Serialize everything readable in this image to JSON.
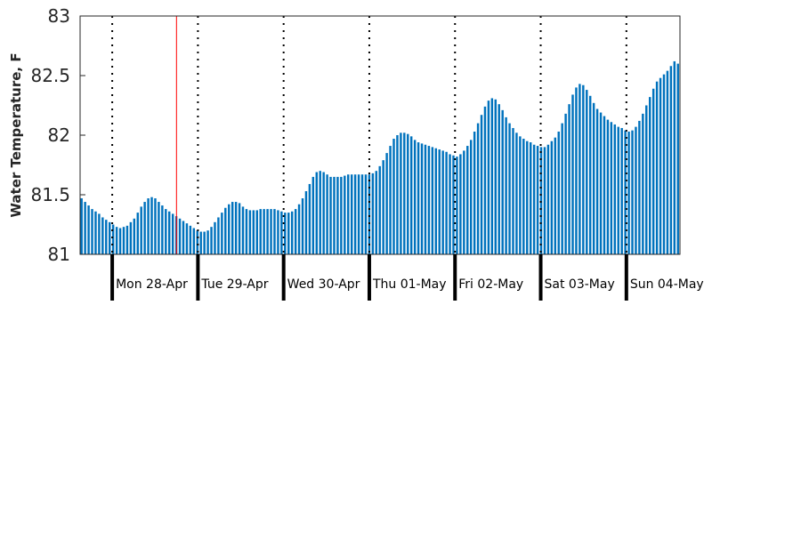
{
  "chart_data": {
    "type": "bar",
    "ylabel": "Water Temperature, F",
    "ylim": [
      81,
      83
    ],
    "yticks": [
      "81",
      "81.5",
      "82",
      "82.5",
      "83"
    ],
    "x_unit": "hours since start of data",
    "xlim": [
      0,
      168
    ],
    "day_boundaries": [
      9,
      33,
      57,
      81,
      105,
      129,
      153
    ],
    "day_labels": [
      "Mon 28-Apr",
      "Tue 29-Apr",
      "Wed 30-Apr",
      "Thu 01-May",
      "Fri 02-May",
      "Sat 03-May",
      "Sun 04-May"
    ],
    "current_time_marker": 27,
    "bar_color": "#0072bd",
    "marker_color": "#ff0000",
    "grid": "dotted vertical lines at day boundaries",
    "values": [
      81.47,
      81.44,
      81.41,
      81.38,
      81.36,
      81.34,
      81.31,
      81.29,
      81.27,
      81.25,
      81.23,
      81.22,
      81.23,
      81.24,
      81.27,
      81.3,
      81.35,
      81.4,
      81.44,
      81.47,
      81.48,
      81.47,
      81.44,
      81.41,
      81.38,
      81.36,
      81.34,
      81.32,
      81.3,
      81.28,
      81.26,
      81.24,
      81.22,
      81.2,
      81.19,
      81.19,
      81.2,
      81.23,
      81.27,
      81.31,
      81.35,
      81.39,
      81.42,
      81.44,
      81.44,
      81.43,
      81.4,
      81.38,
      81.37,
      81.37,
      81.37,
      81.38,
      81.38,
      81.38,
      81.38,
      81.38,
      81.37,
      81.36,
      81.35,
      81.35,
      81.36,
      81.38,
      81.42,
      81.47,
      81.53,
      81.59,
      81.65,
      81.69,
      81.7,
      81.69,
      81.67,
      81.65,
      81.65,
      81.65,
      81.65,
      81.66,
      81.67,
      81.67,
      81.67,
      81.67,
      81.67,
      81.67,
      81.67,
      81.68,
      81.7,
      81.74,
      81.79,
      81.85,
      81.91,
      81.97,
      82.0,
      82.02,
      82.02,
      82.01,
      81.99,
      81.96,
      81.94,
      81.93,
      81.92,
      81.91,
      81.9,
      81.89,
      81.88,
      81.87,
      81.86,
      81.84,
      81.83,
      81.82,
      81.84,
      81.87,
      81.91,
      81.96,
      82.03,
      82.1,
      82.17,
      82.24,
      82.29,
      82.31,
      82.3,
      82.26,
      82.21,
      82.15,
      82.1,
      82.06,
      82.02,
      81.99,
      81.97,
      81.95,
      81.94,
      81.92,
      81.91,
      81.9,
      81.9,
      81.92,
      81.95,
      81.98,
      82.03,
      82.1,
      82.18,
      82.26,
      82.34,
      82.4,
      82.43,
      82.42,
      82.38,
      82.33,
      82.27,
      82.22,
      82.19,
      82.16,
      82.13,
      82.11,
      82.09,
      82.07,
      82.06,
      82.04,
      82.03,
      82.04,
      82.07,
      82.12,
      82.18,
      82.25,
      82.32,
      82.39,
      82.45,
      82.48,
      82.51,
      82.54,
      82.58,
      82.62,
      82.6
    ]
  }
}
